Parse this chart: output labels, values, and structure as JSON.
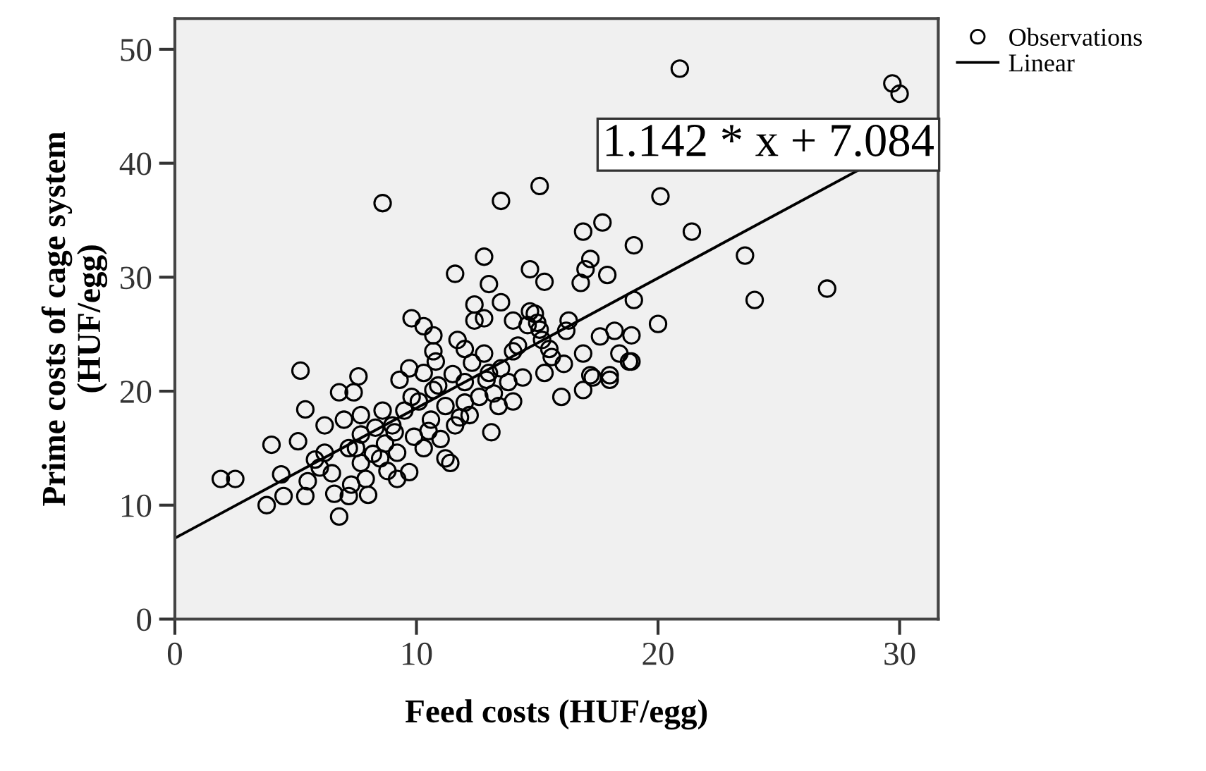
{
  "chart_data": {
    "type": "scatter",
    "xlabel": "Feed costs (HUF/egg)",
    "ylabel": "Prime costs of cage system\n(HUF/egg)",
    "xlim": [
      0,
      31.6
    ],
    "ylim": [
      0,
      52.7
    ],
    "xticks": [
      0,
      10,
      20,
      30
    ],
    "yticks": [
      0,
      10,
      20,
      30,
      40,
      50
    ],
    "grid": false,
    "legend": "top right",
    "annotations": [
      "1.142 * x + 7.084"
    ],
    "series": [
      {
        "name": "Observations",
        "marker": "circle",
        "color": "#000000",
        "x": [
          20.9,
          29.7,
          30.0,
          15.1,
          20.1,
          21.4,
          16.9,
          17.7,
          19.0,
          23.6,
          27.0,
          24.0,
          17.2,
          17.0,
          17.9,
          16.8,
          15.3,
          19.0,
          20.0,
          16.3,
          17.6,
          18.2,
          18.9,
          16.9,
          18.4,
          18.9,
          16.1,
          17.2,
          18.0,
          15.5,
          15.1,
          16.0,
          16.9,
          17.3,
          18.0,
          18.8,
          15.3,
          8.6,
          13.5,
          12.8,
          11.6,
          13.0,
          14.7,
          12.4,
          13.5,
          12.4,
          12.8,
          14.0,
          14.7,
          9.8,
          10.3,
          10.7,
          11.7,
          12.0,
          12.8,
          14.0,
          10.7,
          5.2,
          7.6,
          1.9,
          2.5,
          3.8,
          4.0,
          5.1,
          5.4,
          6.2,
          6.8,
          7.4,
          6.8,
          4.4,
          4.5,
          5.4,
          5.5,
          6.2,
          6.6,
          7.2,
          8.0,
          7.9,
          7.0,
          7.7,
          8.6,
          8.3,
          9.1,
          9.3,
          9.7,
          10.3,
          10.8,
          10.1,
          10.7,
          11.2,
          10.6,
          9.9,
          9.2,
          8.5,
          9.2,
          9.7,
          11.2,
          11.4,
          11.0,
          12.0,
          12.6,
          12.2,
          13.1,
          13.4,
          13.0,
          14.0,
          13.8,
          11.8,
          6.0,
          7.2,
          7.7,
          8.7,
          10.3,
          7.7,
          9.5,
          12.3,
          12.9,
          13.5,
          14.2,
          14.6,
          14.9,
          15.0,
          15.2,
          15.6,
          16.2,
          11.5,
          12.0,
          13.2,
          14.4,
          10.9,
          9.0,
          9.8,
          8.2,
          7.5,
          6.5,
          5.8,
          7.3,
          8.8,
          10.5,
          11.6
        ],
        "values": [
          48.3,
          47.0,
          46.1,
          38.0,
          37.1,
          34.0,
          34.0,
          34.8,
          32.8,
          31.9,
          29.0,
          28.0,
          31.6,
          30.7,
          30.2,
          29.5,
          29.6,
          28.0,
          25.9,
          26.2,
          24.8,
          25.3,
          24.9,
          23.3,
          23.3,
          22.6,
          22.4,
          21.4,
          21.4,
          23.7,
          25.4,
          19.5,
          20.1,
          21.2,
          21.0,
          22.6,
          21.6,
          36.5,
          36.7,
          31.8,
          30.3,
          29.4,
          30.7,
          27.6,
          27.8,
          26.2,
          26.4,
          26.2,
          27.0,
          26.4,
          25.7,
          24.9,
          24.5,
          23.7,
          23.3,
          23.5,
          23.5,
          21.8,
          21.3,
          12.3,
          12.3,
          10.0,
          15.3,
          15.6,
          18.4,
          17.0,
          19.9,
          19.9,
          9.0,
          12.7,
          10.8,
          10.8,
          12.1,
          14.6,
          11.0,
          10.8,
          10.9,
          12.3,
          17.5,
          17.9,
          18.3,
          16.8,
          16.4,
          21.0,
          22.0,
          21.6,
          22.6,
          19.1,
          20.1,
          18.7,
          17.5,
          16.0,
          14.6,
          14.1,
          12.3,
          12.9,
          14.1,
          13.7,
          15.8,
          20.8,
          19.5,
          17.9,
          16.4,
          18.7,
          21.6,
          19.1,
          20.8,
          17.7,
          13.3,
          15.0,
          13.7,
          15.4,
          15.0,
          16.2,
          18.3,
          22.5,
          21.0,
          22.0,
          24.0,
          25.8,
          26.8,
          26.0,
          24.5,
          23.0,
          25.3,
          21.5,
          19.0,
          19.8,
          21.2,
          20.5,
          17.0,
          19.5,
          14.5,
          15.0,
          12.8,
          14.0,
          11.8,
          13.0,
          16.5,
          17.0
        ]
      },
      {
        "name": "Linear",
        "type": "line",
        "marker": "none",
        "color": "#000000",
        "x": [
          0,
          28.3
        ],
        "values": [
          7.1,
          39.4
        ]
      }
    ]
  }
}
